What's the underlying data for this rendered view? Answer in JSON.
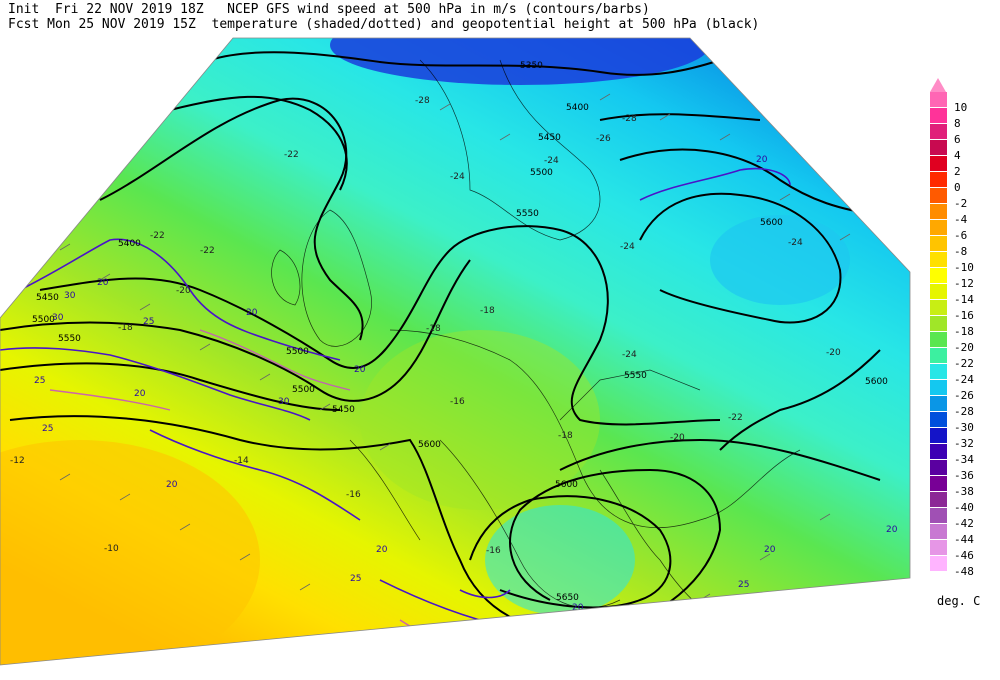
{
  "header": {
    "line1": "Init  Fri 22 NOV 2019 18Z   NCEP GFS wind speed at 500 hPa in m/s (contours/barbs)",
    "line2": "Fcst Mon 25 NOV 2019 15Z  temperature (shaded/dotted) and geopotential height at 500 hPa (black)"
  },
  "colorbar": {
    "unit": "deg. C",
    "labels": [
      "10",
      "8",
      "6",
      "4",
      "2",
      "0",
      "-2",
      "-4",
      "-6",
      "-8",
      "-10",
      "-12",
      "-14",
      "-16",
      "-18",
      "-20",
      "-22",
      "-24",
      "-26",
      "-28",
      "-30",
      "-32",
      "-34",
      "-36",
      "-38",
      "-40",
      "-42",
      "-44",
      "-46",
      "-48"
    ],
    "colors": [
      "#ff66b4",
      "#ff3399",
      "#e0207a",
      "#c80a50",
      "#e00020",
      "#ff2a00",
      "#ff5a00",
      "#ff8c00",
      "#ffa800",
      "#ffc400",
      "#ffe000",
      "#ffff00",
      "#e6f500",
      "#c8ee14",
      "#a0e628",
      "#5ae650",
      "#3cf0a0",
      "#28e6e6",
      "#14c8f0",
      "#0a96e6",
      "#0050dc",
      "#1414c8",
      "#3c00b4",
      "#5a00a0",
      "#780096",
      "#8c2896",
      "#a050b4",
      "#c878d2",
      "#e696e6",
      "#ffb4ff"
    ],
    "top_arrow_color": "#ff8cc6"
  },
  "height_labels": [
    "5350",
    "5400",
    "5450",
    "5500",
    "5550",
    "5600",
    "5400",
    "5450",
    "5500",
    "5550",
    "5600",
    "5550",
    "5500",
    "5600",
    "5600",
    "5650",
    "5550",
    "5500",
    "5450",
    "5550"
  ],
  "temp_labels": [
    "-28",
    "-28",
    "-26",
    "-24",
    "-22",
    "-24",
    "-22",
    "-22",
    "-20",
    "-18",
    "-18",
    "-16",
    "-16",
    "-18",
    "-14",
    "-12",
    "-10",
    "-24",
    "-24",
    "-22",
    "-20",
    "-24",
    "-16",
    "-18",
    "-20"
  ],
  "wind_labels": [
    "20",
    "20",
    "25",
    "20",
    "25",
    "20",
    "30",
    "20",
    "25",
    "20",
    "30",
    "30",
    "25",
    "20",
    "20",
    "25",
    "25",
    "30",
    "20",
    "20"
  ]
}
